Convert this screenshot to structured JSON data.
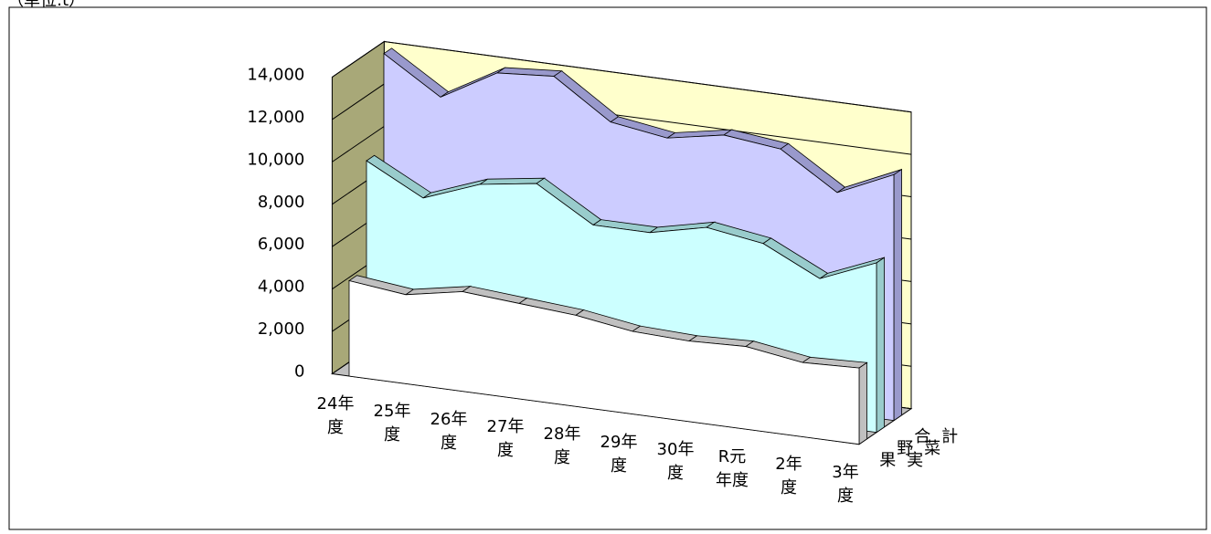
{
  "unit_note": "（単位:t）",
  "chart_data": {
    "type": "area",
    "categories": [
      "24年度",
      "25年度",
      "26年度",
      "27年度",
      "28年度",
      "29年度",
      "30年度",
      "R元年度",
      "2年度",
      "3年度"
    ],
    "series": [
      {
        "name": "果実",
        "color": "#ffffff",
        "edge_color": "#c0c0c0",
        "values": [
          4500,
          4200,
          4700,
          4500,
          4300,
          3900,
          3800,
          3900,
          3500,
          3600
        ]
      },
      {
        "name": "野菜",
        "color": "#ccffff",
        "edge_color": "#99cccc",
        "values": [
          9600,
          8200,
          9200,
          9600,
          8000,
          8000,
          8600,
          8200,
          6900,
          8000
        ]
      },
      {
        "name": "合計",
        "color": "#ccccff",
        "edge_color": "#9999cc",
        "values": [
          14100,
          12400,
          13900,
          14100,
          12300,
          11900,
          12400,
          12100,
          10400,
          11600
        ]
      }
    ],
    "ylim": [
      0,
      14000
    ],
    "yticks": [
      0,
      {
        "value": 2000,
        "label": "2,000"
      },
      {
        "value": 4000,
        "label": "4,000"
      },
      {
        "value": 6000,
        "label": "6,000"
      },
      {
        "value": 8000,
        "label": "8,000"
      },
      {
        "value": 10000,
        "label": "10,000"
      },
      {
        "value": 12000,
        "label": "12,000"
      },
      {
        "value": 14000,
        "label": "14,000"
      }
    ],
    "grid": true,
    "wall_color": "#ffffcc",
    "side_wall_color": "#a8a878",
    "floor_color": "#c0c0c0"
  }
}
